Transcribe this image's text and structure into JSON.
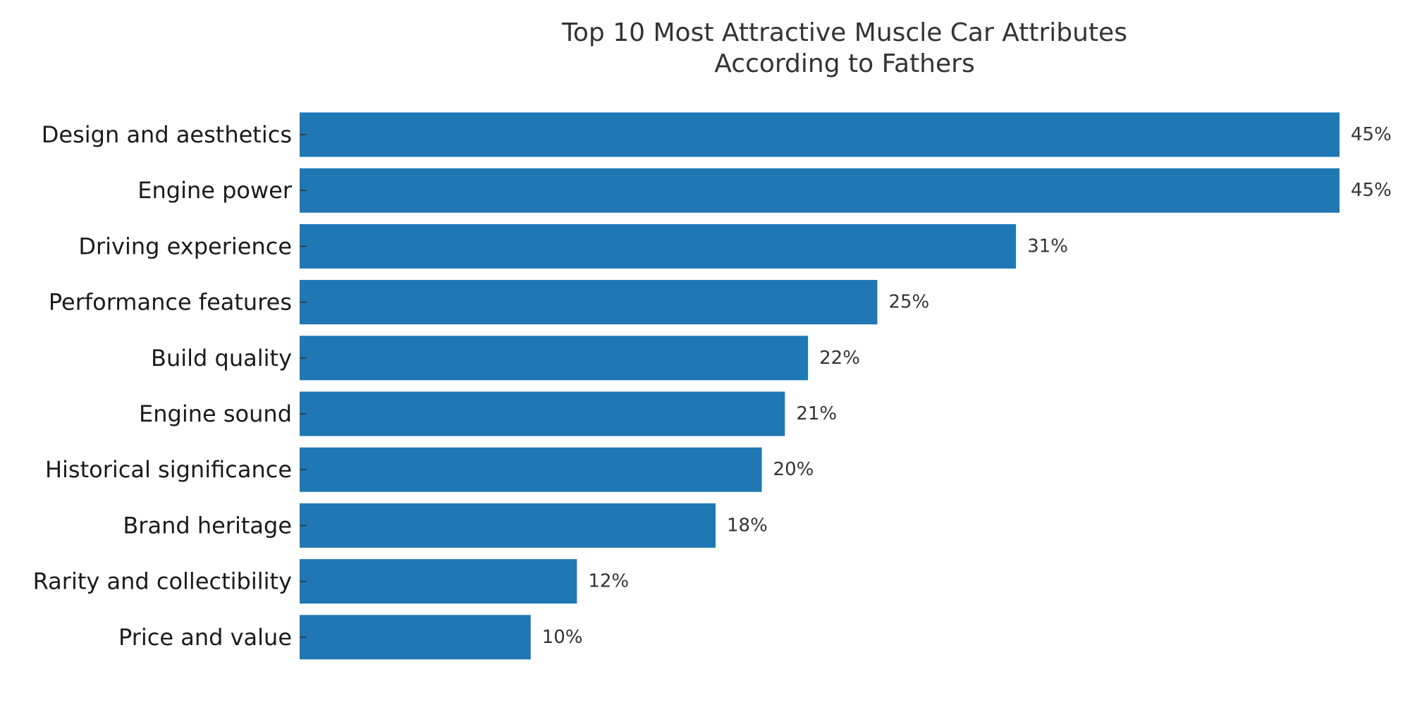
{
  "chart_data": {
    "type": "bar",
    "orientation": "horizontal",
    "title": "Top 10 Most Attractive Muscle Car Attributes\nAccording to Fathers",
    "categories": [
      "Design and aesthetics",
      "Engine power",
      "Driving experience",
      "Performance features",
      "Build quality",
      "Engine sound",
      "Historical significance",
      "Brand heritage",
      "Rarity and collectibility",
      "Price and value"
    ],
    "values": [
      45,
      45,
      31,
      25,
      22,
      21,
      20,
      18,
      12,
      10
    ],
    "value_labels": [
      "45%",
      "45%",
      "31%",
      "25%",
      "22%",
      "21%",
      "20%",
      "18%",
      "12%",
      "10%"
    ],
    "unit": "%",
    "xlim": [
      0,
      45
    ],
    "xlabel": "",
    "ylabel": "",
    "grid": false,
    "legend": "none",
    "bar_color": "#1f77b4"
  }
}
